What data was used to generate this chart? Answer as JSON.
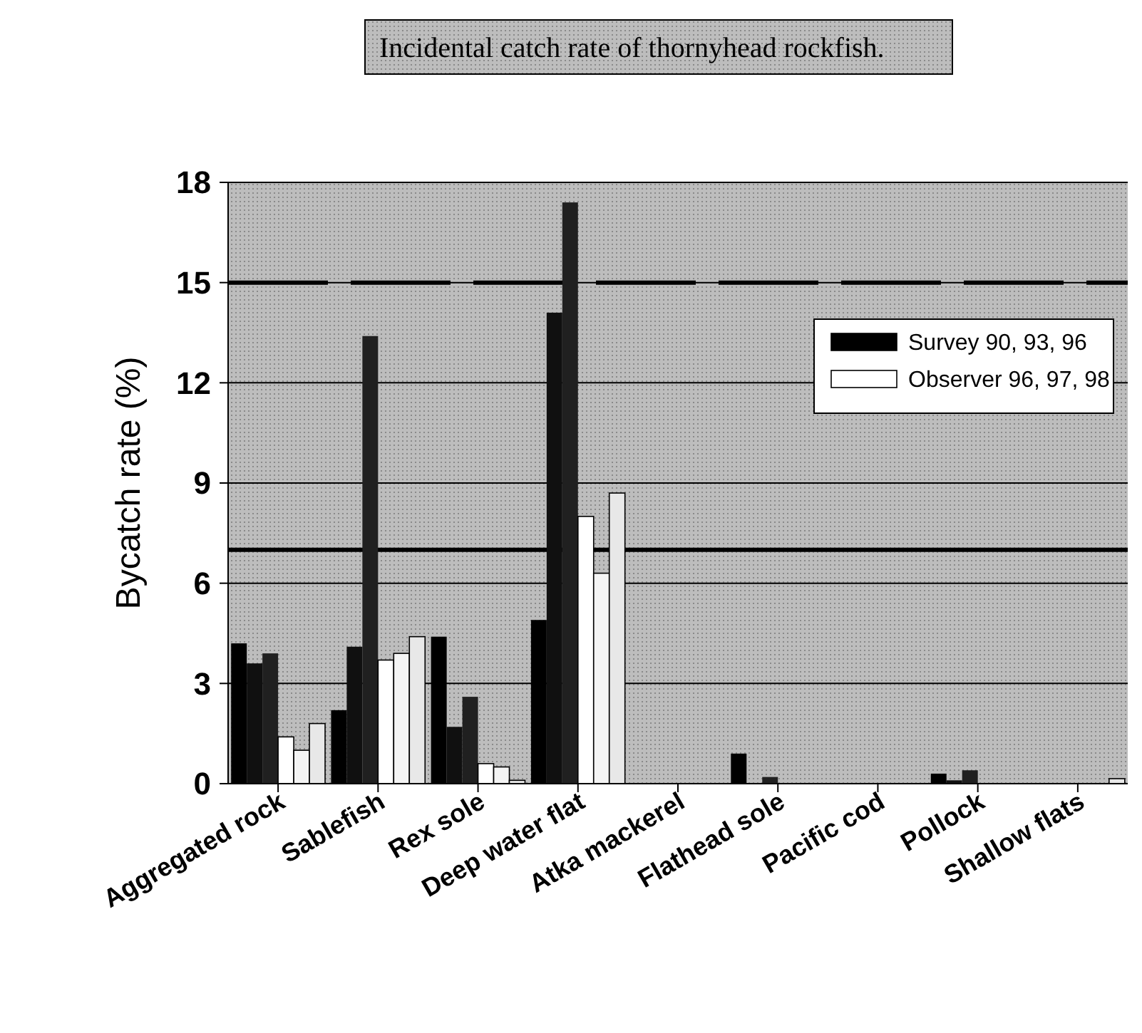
{
  "chart_data": {
    "type": "bar",
    "title": "Incidental catch rate of thornyhead rockfish.",
    "ylabel": "Bycatch rate (%)",
    "categories": [
      "Aggregated rock",
      "Sablefish",
      "Rex sole",
      "Deep water flat",
      "Atka mackerel",
      "Flathead sole",
      "Pacific cod",
      "Pollock",
      "Shallow flats"
    ],
    "series": [
      {
        "name": "Survey 90, 93, 96",
        "color": "#000000",
        "values": [
          4.2,
          2.2,
          4.4,
          4.9,
          0,
          0.9,
          0,
          0.3,
          0
        ]
      },
      {
        "color": "#101010",
        "values": [
          3.6,
          4.1,
          1.7,
          14.1,
          0,
          0,
          0,
          0.1,
          0
        ]
      },
      {
        "color": "#202020",
        "values": [
          3.9,
          13.4,
          2.6,
          17.4,
          0,
          0.2,
          0,
          0.4,
          0
        ]
      },
      {
        "name": "Observer 96, 97, 98",
        "color": "#ffffff",
        "values": [
          1.4,
          3.7,
          0.6,
          8.0,
          0,
          0,
          0,
          0,
          0
        ]
      },
      {
        "color": "#f4f4f4",
        "values": [
          1.0,
          3.9,
          0.5,
          6.3,
          0,
          0,
          0,
          0,
          0
        ]
      },
      {
        "color": "#e8e8e8",
        "values": [
          1.8,
          4.4,
          0.1,
          8.7,
          0,
          0,
          0,
          0,
          0.15
        ]
      }
    ],
    "ylim": [
      0,
      18
    ],
    "yticks": [
      0,
      3,
      6,
      9,
      12,
      15,
      18
    ],
    "grid": "y",
    "legend": "top right",
    "ref_lines": [
      {
        "axis": "y",
        "value": 15,
        "line_style": "dashed",
        "color": "#000000"
      },
      {
        "axis": "y",
        "value": 7,
        "line_style": "solid",
        "color": "#000000"
      }
    ]
  }
}
